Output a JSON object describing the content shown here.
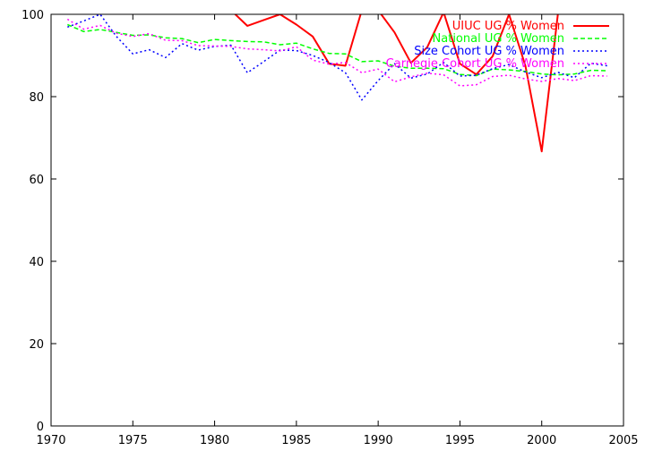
{
  "chart_data": {
    "type": "line",
    "title": "",
    "xlabel": "",
    "ylabel": "",
    "xlim": [
      1970,
      2005
    ],
    "ylim": [
      0,
      100
    ],
    "x_ticks": [
      1970,
      1975,
      1980,
      1985,
      1990,
      1995,
      2000,
      2005
    ],
    "y_ticks": [
      0,
      20,
      40,
      60,
      80,
      100
    ],
    "grid": false,
    "legend_position": "top-right",
    "series": [
      {
        "name": "UIUC UG % Women",
        "color": "#ff0000",
        "dash": "solid",
        "x": [
          1979,
          1980,
          1981,
          1982,
          1983,
          1984,
          1985,
          1986,
          1987,
          1988,
          1989,
          1990,
          1991,
          1992,
          1993,
          1994,
          1995,
          1996,
          1997,
          1998,
          1999,
          2000,
          2001,
          2002
        ],
        "values": [
          104,
          101,
          101,
          97.2,
          98.6,
          100,
          97.5,
          94.6,
          88,
          87.5,
          101,
          101,
          95.6,
          88.2,
          92,
          100.5,
          88,
          85.4,
          89.8,
          100,
          87.5,
          66.7,
          100.5,
          104
        ]
      },
      {
        "name": "National UG % Women",
        "color": "#00ff00",
        "dash": "dashed",
        "x": [
          1971,
          1972,
          1973,
          1974,
          1975,
          1976,
          1977,
          1978,
          1979,
          1980,
          1981,
          1982,
          1983,
          1984,
          1985,
          1986,
          1987,
          1988,
          1989,
          1990,
          1991,
          1992,
          1993,
          1994,
          1995,
          1996,
          1997,
          1998,
          1999,
          2000,
          2001,
          2002,
          2003,
          2004
        ],
        "values": [
          97.5,
          95.8,
          96.3,
          95.6,
          94.9,
          95,
          94.3,
          94.1,
          93.1,
          93.9,
          93.6,
          93.4,
          93.3,
          92.6,
          93,
          91.6,
          90.5,
          90.4,
          88.5,
          88.7,
          87.4,
          86.9,
          86.9,
          86.8,
          85.4,
          85.1,
          86.7,
          86.5,
          86.1,
          85.5,
          85.3,
          85.5,
          86.4,
          86.3
        ]
      },
      {
        "name": "Size Cohort UG % Women",
        "color": "#0000ff",
        "dash": "dotted",
        "x": [
          1971,
          1972,
          1973,
          1974,
          1975,
          1976,
          1977,
          1978,
          1979,
          1980,
          1981,
          1982,
          1983,
          1984,
          1985,
          1986,
          1987,
          1988,
          1989,
          1990,
          1991,
          1992,
          1993,
          1994,
          1995,
          1996,
          1997,
          1998,
          1999,
          2000,
          2001,
          2002,
          2003,
          2004
        ],
        "values": [
          96.9,
          98.4,
          100,
          94.6,
          90.4,
          91.4,
          89.5,
          92.9,
          91.3,
          92.2,
          92.5,
          85.8,
          88.5,
          91.3,
          91.2,
          90,
          88.3,
          85.8,
          79.2,
          83.9,
          88,
          84.5,
          85.5,
          88.3,
          85,
          85.2,
          86.8,
          87.8,
          86,
          84.6,
          85.9,
          84.6,
          88.1,
          87.5
        ]
      },
      {
        "name": "Carnegie Cohort UG % Women",
        "color": "#ff00ff",
        "dash": "dotted",
        "x": [
          1971,
          1972,
          1973,
          1974,
          1975,
          1976,
          1977,
          1978,
          1979,
          1980,
          1981,
          1982,
          1983,
          1984,
          1985,
          1986,
          1987,
          1988,
          1989,
          1990,
          1991,
          1992,
          1993,
          1994,
          1995,
          1996,
          1997,
          1998,
          1999,
          2000,
          2001,
          2002,
          2003,
          2004
        ],
        "values": [
          98.8,
          96.4,
          97.3,
          95.4,
          94.6,
          95.3,
          93.7,
          93.6,
          92.4,
          92.3,
          92.2,
          91.6,
          91.4,
          91.1,
          92.1,
          88.9,
          87.9,
          88.3,
          85.8,
          86.7,
          83.6,
          84.8,
          85.7,
          85.3,
          82.6,
          82.9,
          84.9,
          85.2,
          84.3,
          83.7,
          84.4,
          83.9,
          85.1,
          85
        ]
      }
    ]
  }
}
